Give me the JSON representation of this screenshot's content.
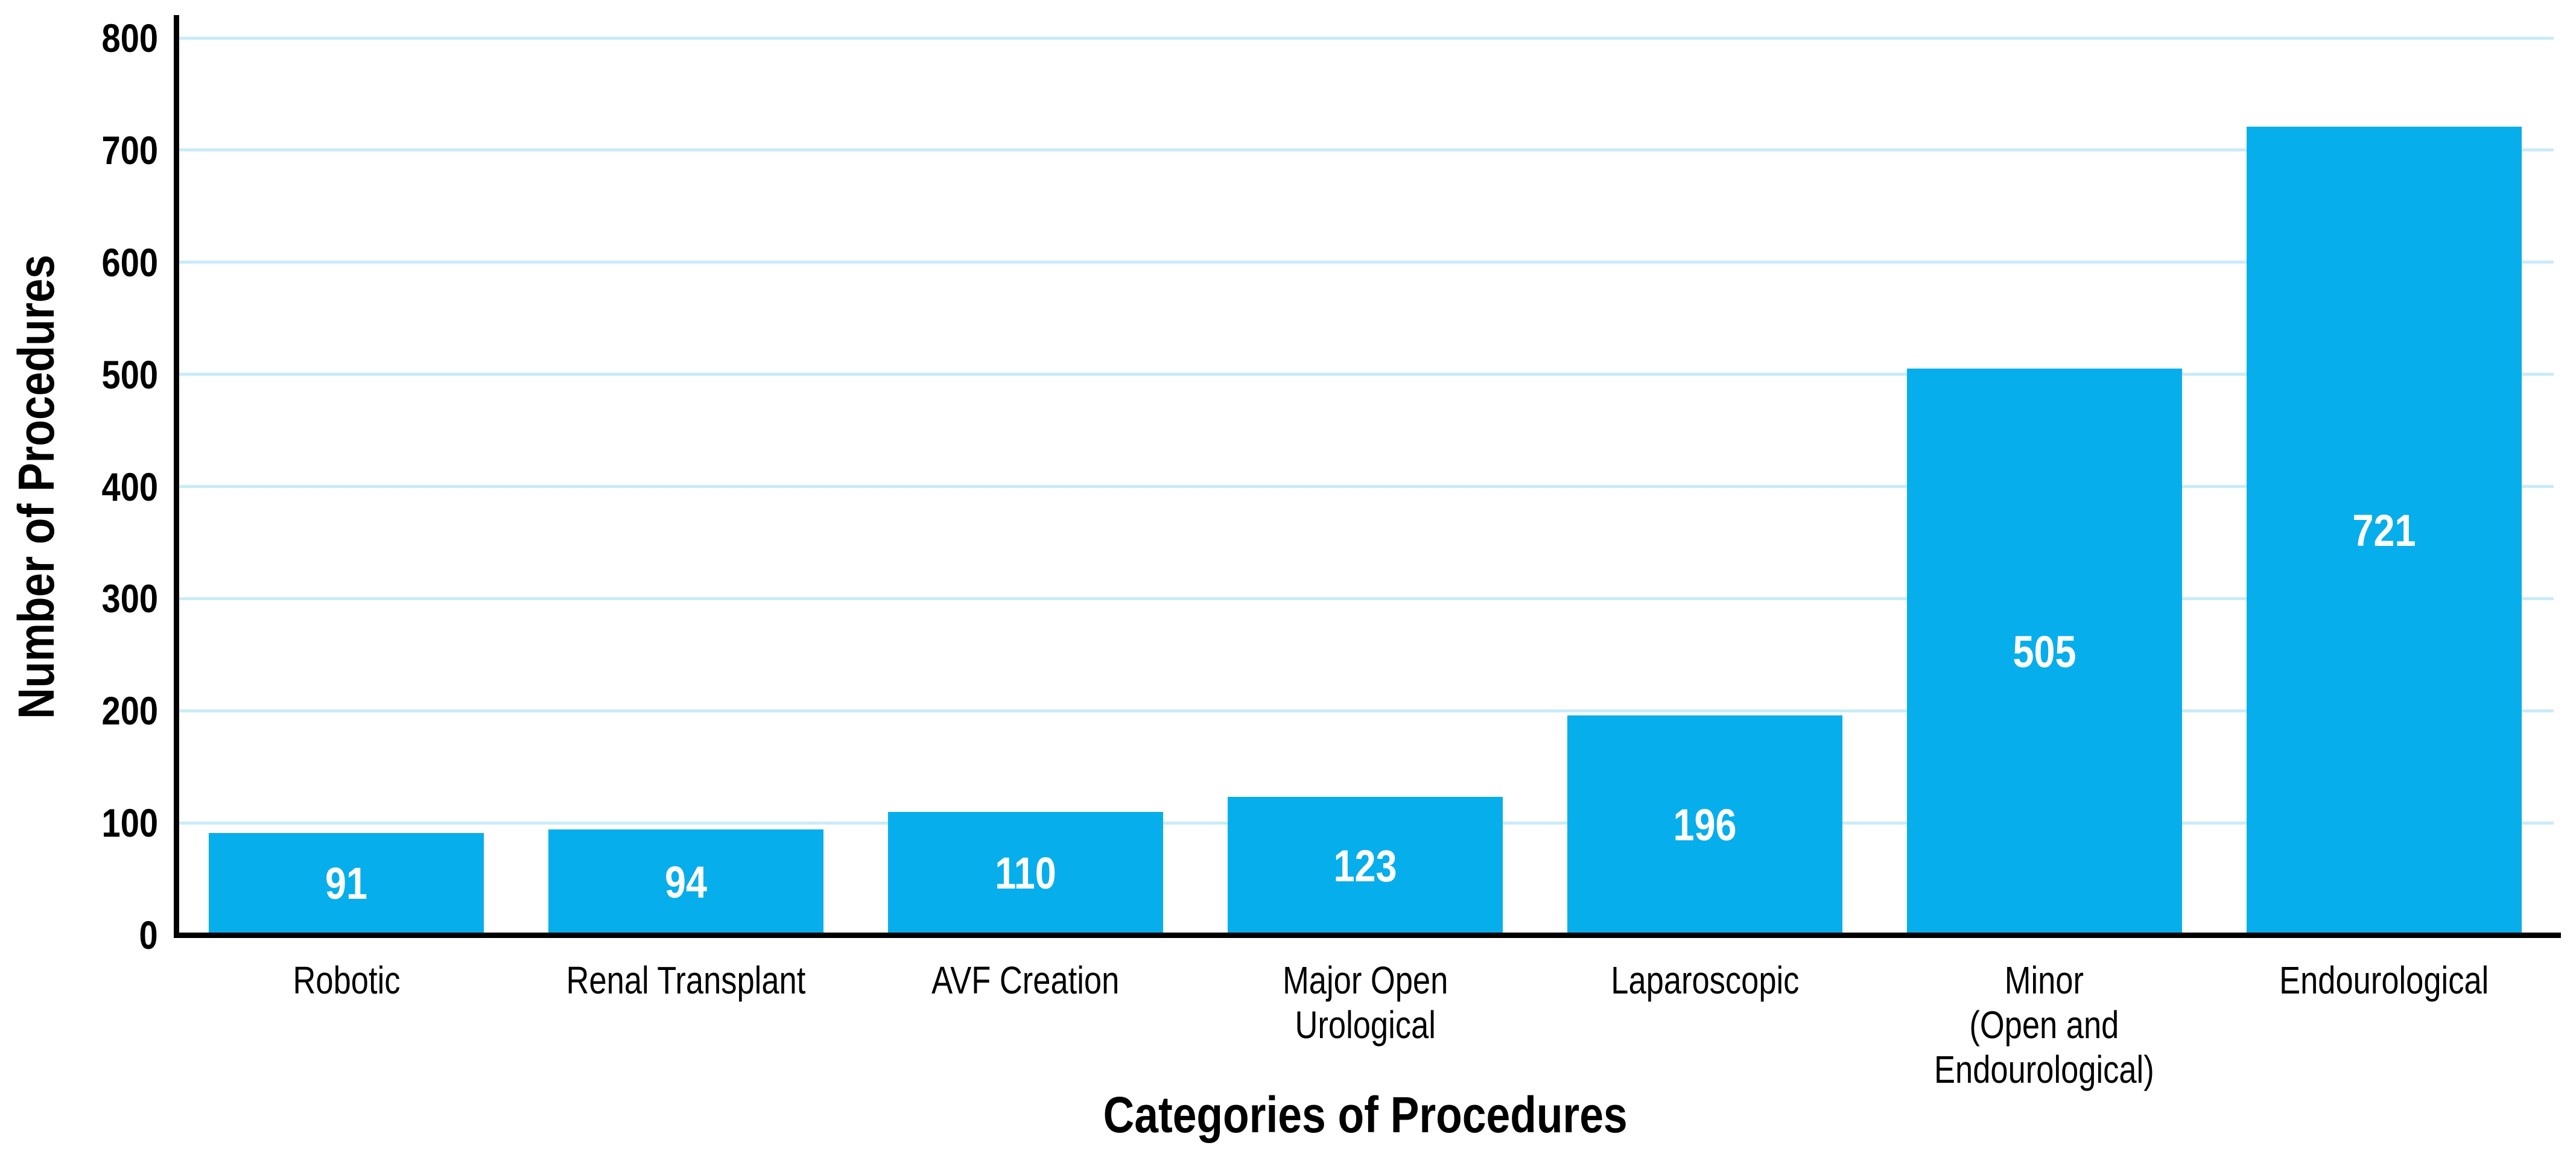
{
  "chart_data": {
    "type": "bar",
    "title": "",
    "xlabel": "Categories of Procedures",
    "ylabel": "Number of Procedures",
    "categories": [
      "Robotic",
      "Renal Transplant",
      "AVF Creation",
      "Major Open\nUrological",
      "Laparoscopic",
      "Minor\n(Open and\nEndourological)",
      "Endourological"
    ],
    "values": [
      91,
      94,
      110,
      123,
      196,
      505,
      721
    ],
    "value_labels": [
      "91",
      "94",
      "110",
      "123",
      "196",
      "505",
      "721"
    ],
    "ylim": [
      0,
      800
    ],
    "yticks": [
      0,
      100,
      200,
      300,
      400,
      500,
      600,
      700,
      800
    ],
    "grid": "horizontal-light",
    "legend": "none",
    "colors": {
      "bar": "#06AEEC",
      "bar_value_text": "#FFFFFF",
      "gridline": "#C8ECF9",
      "axis": "#000000",
      "text": "#000000",
      "background": "#FFFFFF"
    }
  }
}
